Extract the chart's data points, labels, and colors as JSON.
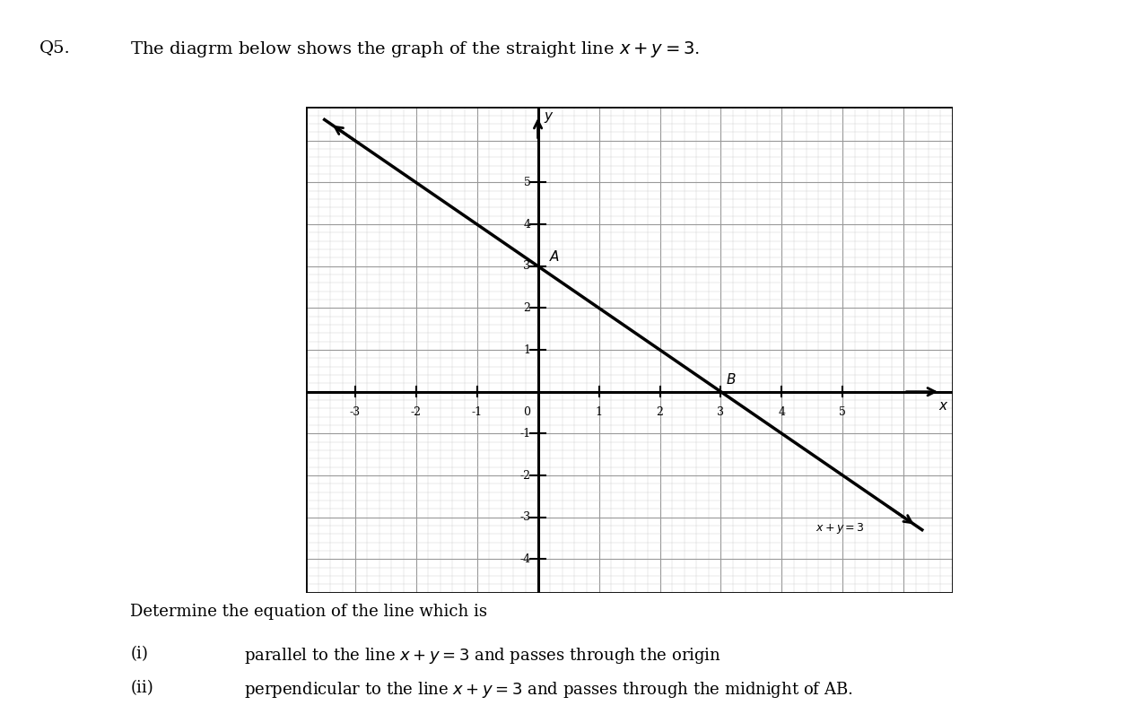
{
  "line_x": [
    -3.5,
    6.3
  ],
  "line_y": [
    6.5,
    -3.3
  ],
  "point_A": [
    0,
    3
  ],
  "point_B": [
    3,
    0
  ],
  "label_A": "A",
  "label_B": "B",
  "line_label": "x+y=3",
  "xlim": [
    -3.8,
    6.8
  ],
  "ylim": [
    -4.8,
    6.8
  ],
  "xticks": [
    -3,
    -2,
    -1,
    0,
    1,
    2,
    3,
    4,
    5
  ],
  "yticks": [
    -4,
    -3,
    -2,
    -1,
    1,
    2,
    3,
    4,
    5
  ],
  "grid_minor_color": "#cccccc",
  "grid_major_color": "#999999",
  "line_color": "#000000",
  "bg_color": "#ffffff",
  "plot_bg_color": "#e8e8e8",
  "q_label": "Q5.",
  "title_text": "The diagrm below shows the graph of the straight line $x + y = 3$.",
  "determine_text": "Determine the equation of the line which is",
  "item_i_label": "(i)",
  "item_i_text": "parallel to the line $x + y = 3$ and passes through the origin",
  "item_ii_label": "(ii)",
  "item_ii_text": "perpendicular to the line $x + y = 3$ and passes through the midnight of AB."
}
